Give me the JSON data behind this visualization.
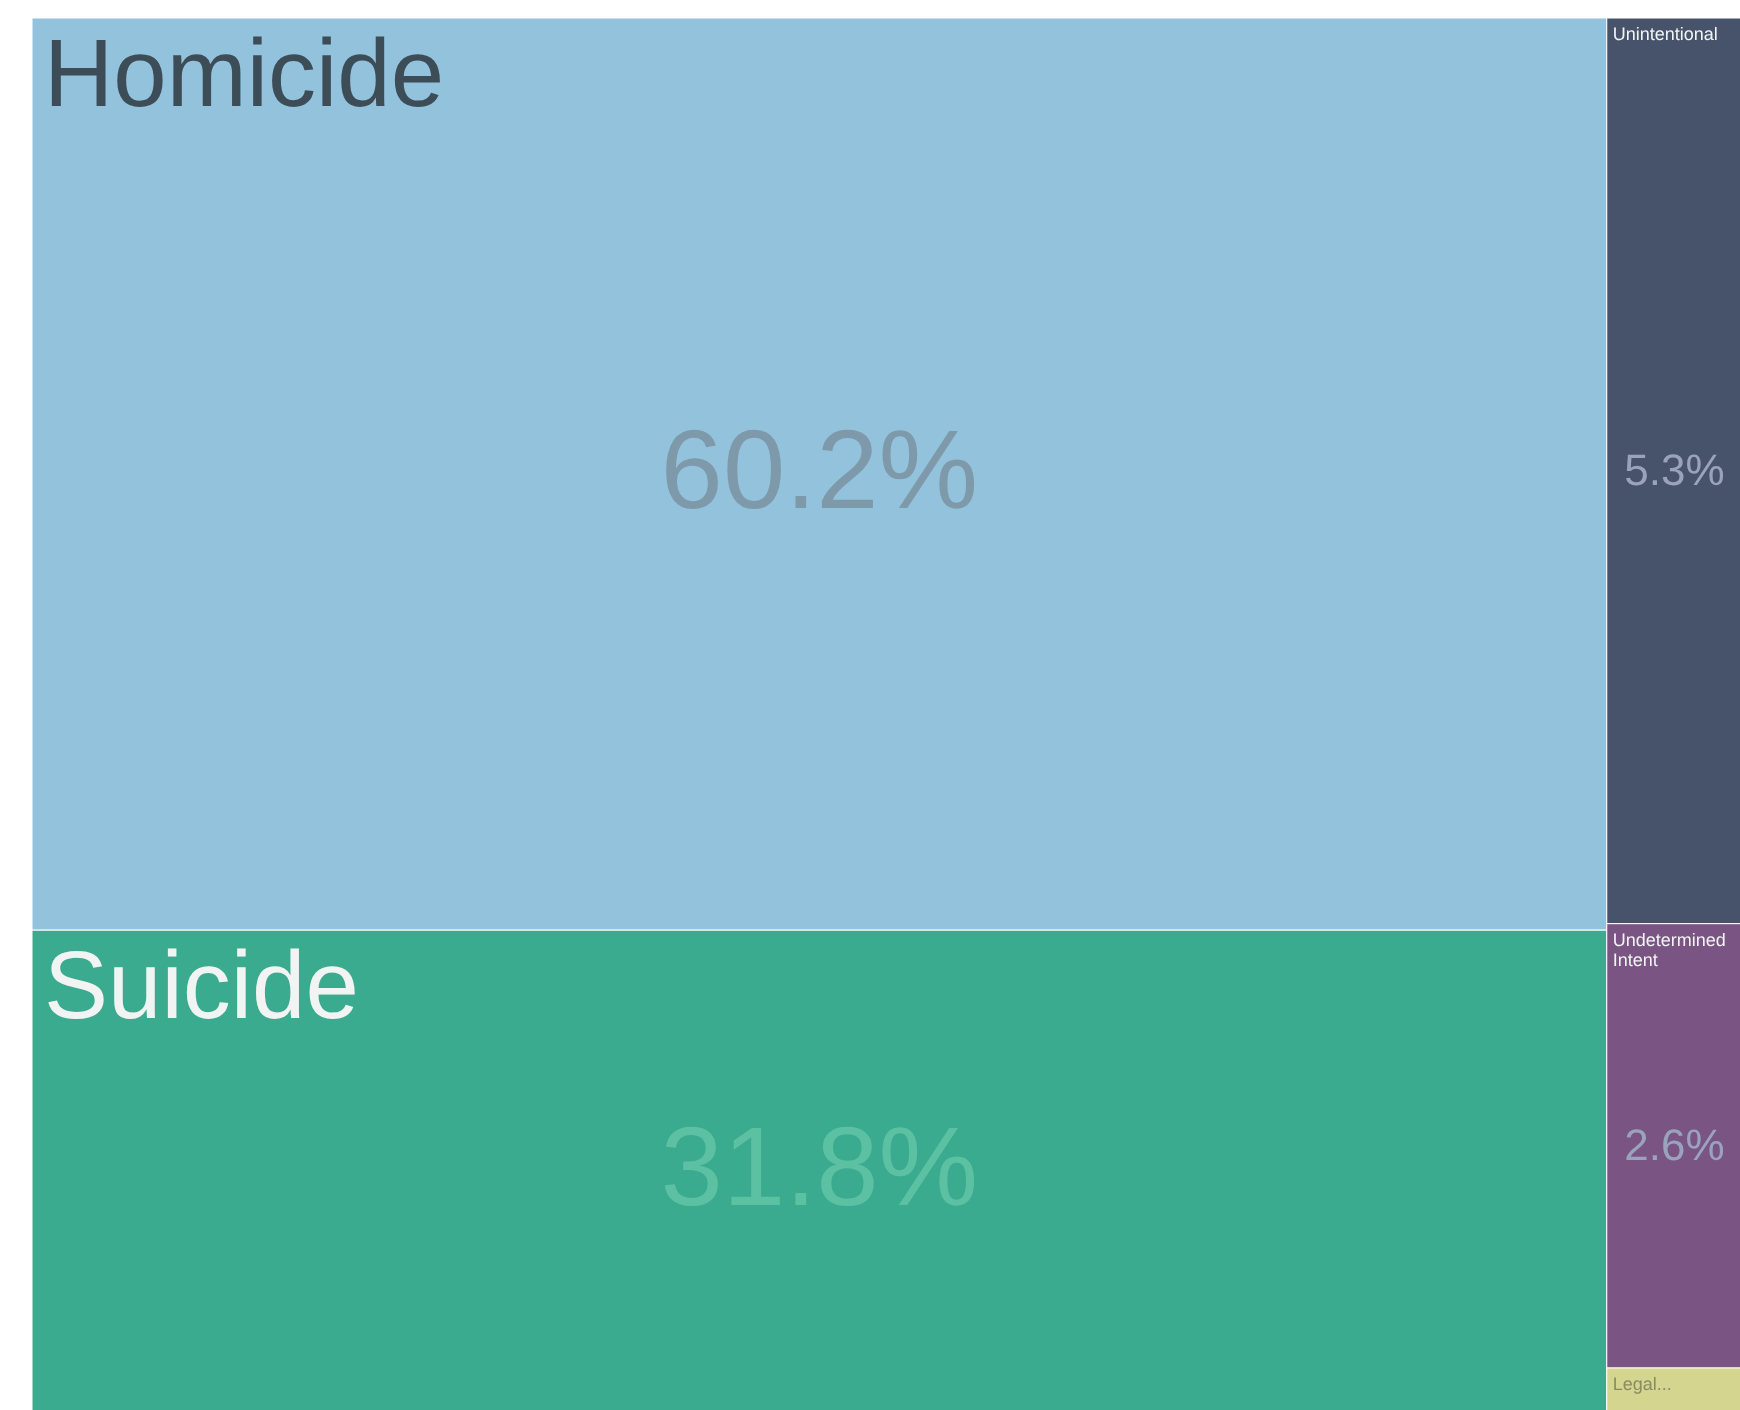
{
  "chart_data": {
    "type": "other",
    "categories": [
      "Homicide",
      "Suicide",
      "Unintentional",
      "Undetermined Intent",
      "Legal..."
    ],
    "values": [
      60.2,
      31.8,
      5.3,
      2.6,
      null
    ],
    "value_labels": [
      "60.2%",
      "31.8%",
      "5.3%",
      "2.6%",
      null
    ],
    "colors": [
      "#93c3dc",
      "#3aab8e",
      "#46536b",
      "#7a5482",
      "#d4d58f"
    ]
  }
}
